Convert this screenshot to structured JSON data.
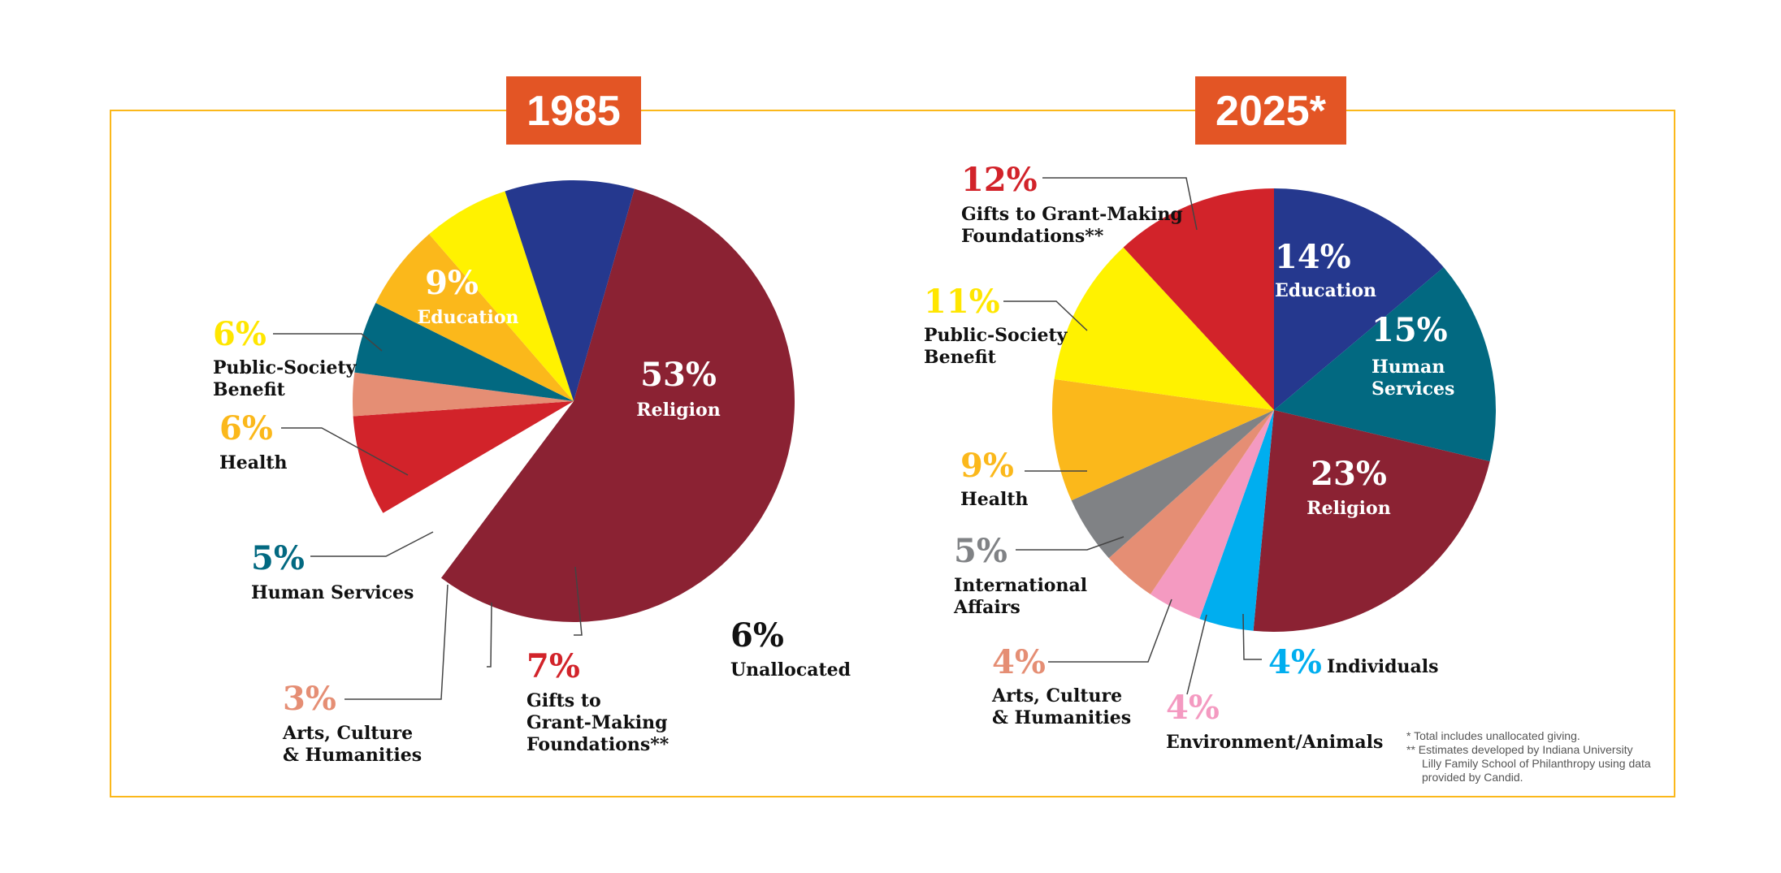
{
  "chart_data": [
    {
      "type": "pie",
      "title": "1985",
      "slices": [
        {
          "label": "Religion",
          "value": 53,
          "pct": "53%",
          "color": "#8B2233",
          "text_color": "#ffffff"
        },
        {
          "label": "Unallocated",
          "value": 6,
          "pct": "6%",
          "color": "#ffffff",
          "text_color": "#000000"
        },
        {
          "label": "Gifts to Grant-Making Foundations**",
          "value": 7,
          "pct": "7%",
          "color": "#D2232A",
          "text_color": "#D2232A"
        },
        {
          "label": "Arts, Culture & Humanities",
          "value": 3,
          "pct": "3%",
          "color": "#E58E74",
          "text_color": "#E58E74"
        },
        {
          "label": "Human Services",
          "value": 5,
          "pct": "5%",
          "color": "#026981",
          "text_color": "#026981"
        },
        {
          "label": "Health",
          "value": 6,
          "pct": "6%",
          "color": "#FBB81B",
          "text_color": "#FBB81B"
        },
        {
          "label": "Public-Society Benefit",
          "value": 6,
          "pct": "6%",
          "color": "#FFF200",
          "text_color": "#FFE600"
        },
        {
          "label": "Education",
          "value": 9,
          "pct": "9%",
          "color": "#25388E",
          "text_color": "#ffffff"
        }
      ]
    },
    {
      "type": "pie",
      "title": "2025*",
      "slices": [
        {
          "label": "Education",
          "value": 14,
          "pct": "14%",
          "color": "#25388E",
          "text_color": "#ffffff"
        },
        {
          "label": "Human Services",
          "value": 15,
          "pct": "15%",
          "color": "#026981",
          "text_color": "#ffffff"
        },
        {
          "label": "Religion",
          "value": 23,
          "pct": "23%",
          "color": "#8B2233",
          "text_color": "#ffffff"
        },
        {
          "label": "Individuals",
          "value": 4,
          "pct": "4%",
          "color": "#00AEEF",
          "text_color": "#00AEEF"
        },
        {
          "label": "Environment/Animals",
          "value": 4,
          "pct": "4%",
          "color": "#F49AC1",
          "text_color": "#F49AC1"
        },
        {
          "label": "Arts, Culture & Humanities",
          "value": 4,
          "pct": "4%",
          "color": "#E58E74",
          "text_color": "#E58E74"
        },
        {
          "label": "International Affairs",
          "value": 5,
          "pct": "5%",
          "color": "#808285",
          "text_color": "#808285"
        },
        {
          "label": "Health",
          "value": 9,
          "pct": "9%",
          "color": "#FBB81B",
          "text_color": "#FBB81B"
        },
        {
          "label": "Public-Society Benefit",
          "value": 11,
          "pct": "11%",
          "color": "#FFF200",
          "text_color": "#FFE600"
        },
        {
          "label": "Gifts to Grant-Making Foundations**",
          "value": 12,
          "pct": "12%",
          "color": "#D2232A",
          "text_color": "#D2232A"
        }
      ]
    }
  ],
  "labels_1985": {
    "religion": [
      "Religion"
    ],
    "education": [
      "Education"
    ],
    "public": [
      "Public-Society",
      "Benefit"
    ],
    "health": [
      "Health"
    ],
    "human": [
      "Human Services"
    ],
    "arts": [
      "Arts, Culture",
      "& Humanities"
    ],
    "gifts": [
      "Gifts to",
      "Grant-Making",
      "Foundations**"
    ],
    "unalloc": [
      "Unallocated"
    ]
  },
  "labels_2025": {
    "gifts": [
      "Gifts to Grant-Making",
      "Foundations**"
    ],
    "education": [
      "Education"
    ],
    "human": [
      "Human",
      "Services"
    ],
    "public": [
      "Public-Society",
      "Benefit"
    ],
    "health": [
      "Health"
    ],
    "religion": [
      "Religion"
    ],
    "intl": [
      "International",
      "Affairs"
    ],
    "arts": [
      "Arts, Culture",
      "& Humanities"
    ],
    "env": [
      "Environment/Animals"
    ],
    "indiv": [
      "Individuals"
    ]
  },
  "notes": [
    "* Total includes unallocated giving.",
    "** Estimates developed by Indiana University",
    "Lilly Family School of Philanthropy using data",
    "provided by Candid."
  ],
  "colors": {
    "frame": "#FBB81B",
    "year_box": "#E35525"
  }
}
